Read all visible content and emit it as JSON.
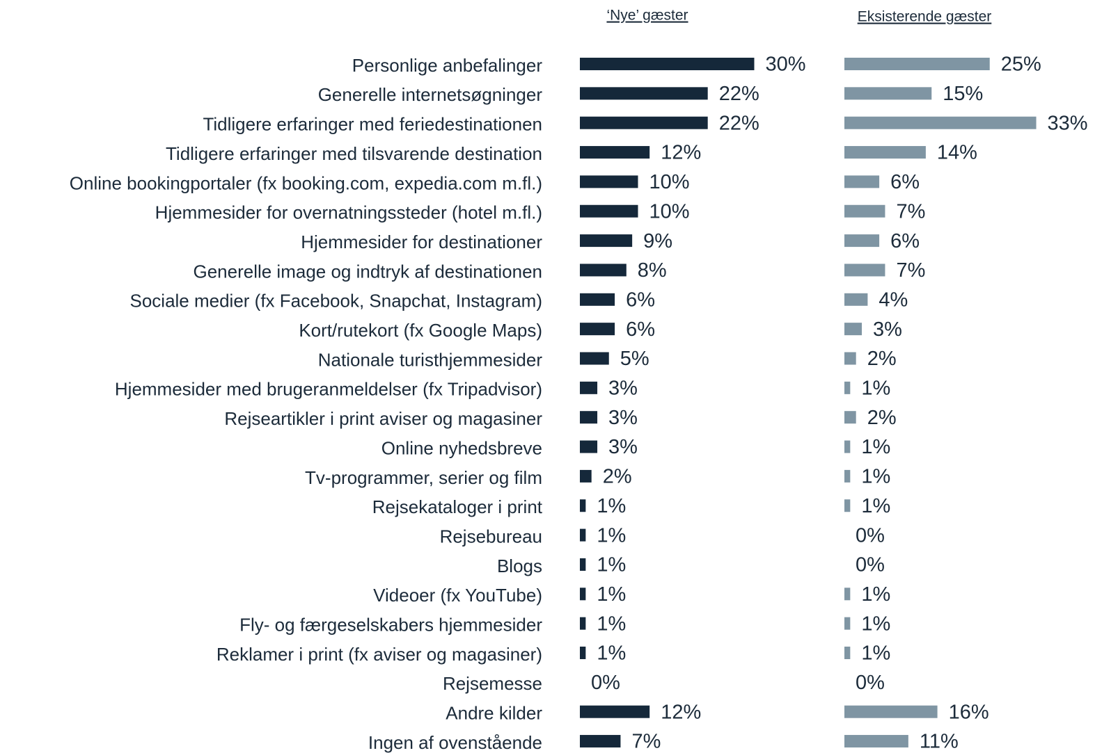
{
  "chart_data": {
    "type": "bar",
    "categories": [
      "Personlige anbefalinger",
      "Generelle internetsøgninger",
      "Tidligere erfaringer med feriedestinationen",
      "Tidligere erfaringer med tilsvarende destination",
      "Online bookingportaler (fx booking.com, expedia.com m.fl.)",
      "Hjemmesider for overnatningssteder (hotel m.fl.)",
      "Hjemmesider for destinationer",
      "Generelle image og indtryk af destinationen",
      "Sociale medier (fx Facebook, Snapchat, Instagram)",
      "Kort/rutekort (fx Google Maps)",
      "Nationale turisthjemmesider",
      "Hjemmesider med brugeranmeldelser (fx Tripadvisor)",
      "Rejseartikler i print aviser og magasiner",
      "Online nyhedsbreve",
      "Tv-programmer, serier og film",
      "Rejsekataloger i print",
      "Rejsebureau",
      "Blogs",
      "Videoer (fx YouTube)",
      "Fly- og færgeselskabers hjemmesider",
      "Reklamer i print (fx aviser og magasiner)",
      "Rejsemesse",
      "Andre kilder",
      "Ingen af ovenstående"
    ],
    "series": [
      {
        "name": "‘Nye’ gæster",
        "color": "#15283a",
        "values": [
          30,
          22,
          22,
          12,
          10,
          10,
          9,
          8,
          6,
          6,
          5,
          3,
          3,
          3,
          2,
          1,
          1,
          1,
          1,
          1,
          1,
          0,
          12,
          7
        ],
        "value_labels": [
          "30%",
          "22%",
          "22%",
          "12%",
          "10%",
          "10%",
          "9%",
          "8%",
          "6%",
          "6%",
          "5%",
          "3%",
          "3%",
          "3%",
          "2%",
          "1%",
          "1%",
          "1%",
          "1%",
          "1%",
          "1%",
          "0%",
          "12%",
          "7%"
        ]
      },
      {
        "name": "Eksisterende gæster",
        "color": "#7f95a3",
        "values": [
          25,
          15,
          33,
          14,
          6,
          7,
          6,
          7,
          4,
          3,
          2,
          1,
          2,
          1,
          1,
          1,
          0,
          0,
          1,
          1,
          1,
          0,
          16,
          11
        ],
        "value_labels": [
          "25%",
          "15%",
          "33%",
          "14%",
          "6%",
          "7%",
          "6%",
          "7%",
          "4%",
          "3%",
          "2%",
          "1%",
          "2%",
          "1%",
          "1%",
          "1%",
          "0%",
          "0%",
          "1%",
          "1%",
          "1%",
          "0%",
          "16%",
          "11%"
        ]
      }
    ]
  }
}
